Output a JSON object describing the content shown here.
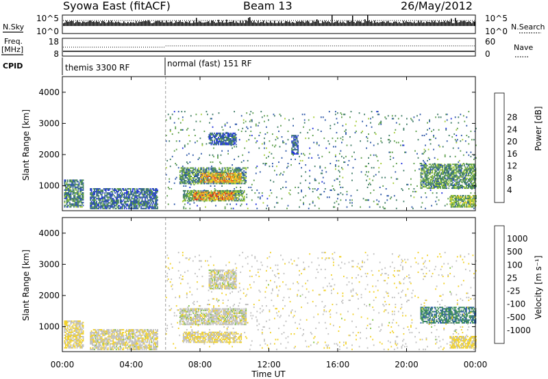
{
  "header": {
    "station": "Syowa East (fitACF)",
    "beam": "Beam 13",
    "date": "26/May/2012"
  },
  "panels": {
    "nsky_label": "N.Sky",
    "nsky_ticks": [
      "10^5",
      "10^0"
    ],
    "nsearch_label": "N.Search",
    "nsearch_ticks": [
      "10^5",
      "10^0"
    ],
    "freq_label": "Freq.",
    "freq_unit": "[MHz]",
    "freq_ticks": [
      "18",
      "8"
    ],
    "nave_label": "Nave",
    "nave_ticks": [
      "60",
      "0"
    ],
    "cpid_label": "CPID",
    "cpid_modes": [
      {
        "name": "themis 3300 RF",
        "start_hour": 0
      },
      {
        "name": "normal (fast) 151 RF",
        "start_hour": 6
      }
    ]
  },
  "colors": {
    "power_scale": [
      "#2233dd",
      "#2c56a8",
      "#3e7b65",
      "#5c9e4a",
      "#a5cc36",
      "#f0d020",
      "#f4aa20",
      "#ee6420",
      "#dd1c1c"
    ],
    "velocity_scale": [
      "#e01010",
      "#f0552a",
      "#f6a81f",
      "#f2d22a",
      "#c0c0c0",
      "#7fc240",
      "#3f8f58",
      "#2a5aa6",
      "#2030cc"
    ]
  },
  "chart_data": [
    {
      "type": "heatmap",
      "title": "Power",
      "ylabel": "Slant Range [km]",
      "yticks": [
        "1000",
        "2000",
        "3000",
        "4000"
      ],
      "ylim": [
        200,
        4500
      ],
      "xticks": [
        "00:00",
        "04:00",
        "08:00",
        "12:00",
        "16:00",
        "20:00",
        "00:00"
      ],
      "xlim_hours": [
        0,
        24
      ],
      "colorbar_label": "Power [dB]",
      "colorbar_ticks": [
        "4",
        "8",
        "12",
        "16",
        "20",
        "24",
        "28"
      ],
      "colorbar_range": [
        0,
        32
      ],
      "regions": [
        {
          "t0": 6.8,
          "t1": 10.7,
          "r0": 1050,
          "r1": 1550,
          "value": 10
        },
        {
          "t0": 8.0,
          "t1": 10.4,
          "r0": 1100,
          "r1": 1380,
          "value": 22
        },
        {
          "t0": 7.0,
          "t1": 10.6,
          "r0": 500,
          "r1": 820,
          "value": 12
        },
        {
          "t0": 7.6,
          "t1": 10.0,
          "r0": 540,
          "r1": 780,
          "value": 24
        },
        {
          "t0": 8.5,
          "t1": 10.1,
          "r0": 2300,
          "r1": 2700,
          "value": 6
        },
        {
          "t0": 0.1,
          "t1": 1.2,
          "r0": 300,
          "r1": 1200,
          "value": 9
        },
        {
          "t0": 1.6,
          "t1": 5.5,
          "r0": 250,
          "r1": 900,
          "value": 7
        },
        {
          "t0": 20.8,
          "t1": 24.0,
          "r0": 900,
          "r1": 1700,
          "value": 11
        },
        {
          "t0": 22.5,
          "t1": 24.0,
          "r0": 300,
          "r1": 700,
          "value": 14
        },
        {
          "t0": 13.3,
          "t1": 13.7,
          "r0": 2000,
          "r1": 2600,
          "value": 6
        },
        {
          "t0": 6.0,
          "t1": 24.0,
          "r0": 250,
          "r1": 3400,
          "value": 9,
          "sparse": true
        }
      ]
    },
    {
      "type": "heatmap",
      "title": "Velocity",
      "ylabel": "Slant Range [km]",
      "yticks": [
        "1000",
        "2000",
        "3000",
        "4000"
      ],
      "ylim": [
        200,
        4500
      ],
      "xticks": [
        "00:00",
        "04:00",
        "08:00",
        "12:00",
        "16:00",
        "20:00",
        "00:00"
      ],
      "xlim_hours": [
        0,
        24
      ],
      "xlabel": "Time UT",
      "colorbar_label": "Velocity [m s⁻¹]",
      "colorbar_ticks": [
        "-1000",
        "-500",
        "-100",
        "-25",
        "25",
        "100",
        "500",
        "1000"
      ],
      "colorbar_range": [
        -1200,
        1200
      ],
      "regions": [
        {
          "t0": 6.8,
          "t1": 10.7,
          "r0": 1050,
          "r1": 1550,
          "value": 0
        },
        {
          "t0": 7.0,
          "t1": 10.4,
          "r0": 480,
          "r1": 820,
          "value": -150
        },
        {
          "t0": 8.5,
          "t1": 10.1,
          "r0": 2200,
          "r1": 2800,
          "value": 0
        },
        {
          "t0": 0.1,
          "t1": 1.2,
          "r0": 300,
          "r1": 1200,
          "value": -150
        },
        {
          "t0": 1.6,
          "t1": 5.5,
          "r0": 250,
          "r1": 900,
          "value": -50
        },
        {
          "t0": 20.8,
          "t1": 24.0,
          "r0": 1100,
          "r1": 1600,
          "value": 600
        },
        {
          "t0": 22.5,
          "t1": 24.0,
          "r0": 300,
          "r1": 700,
          "value": -200
        },
        {
          "t0": 6.0,
          "t1": 24.0,
          "r0": 250,
          "r1": 3400,
          "value": -60,
          "sparse": true
        }
      ]
    }
  ]
}
